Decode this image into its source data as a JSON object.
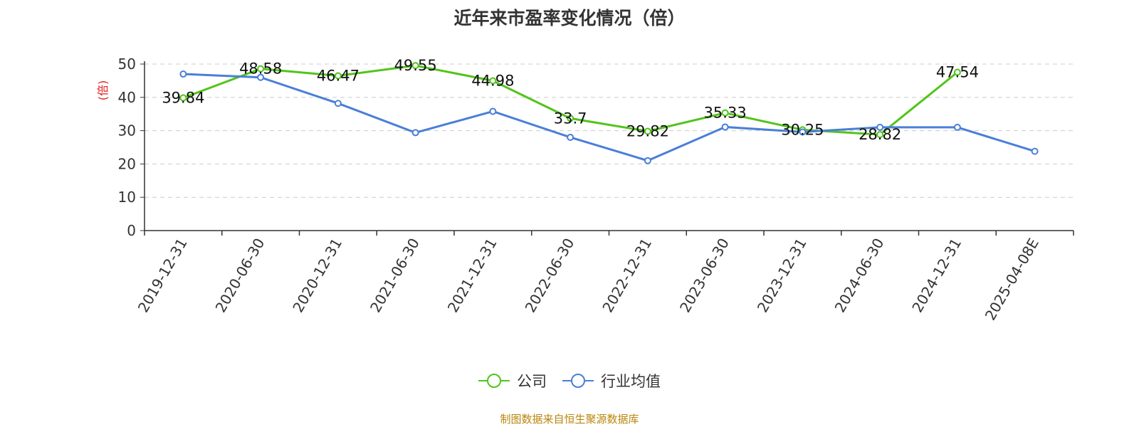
{
  "chart_data": {
    "type": "line",
    "title": "近年来市盈率变化情况（倍）",
    "ylabel": "(倍)",
    "ylim": [
      0,
      50
    ],
    "yticks": [
      0,
      10,
      20,
      30,
      40,
      50
    ],
    "categories": [
      "2019-12-31",
      "2020-06-30",
      "2020-12-31",
      "2021-06-30",
      "2021-12-31",
      "2022-06-30",
      "2022-12-31",
      "2023-06-30",
      "2023-12-31",
      "2024-06-30",
      "2024-12-31",
      "2025-04-08E"
    ],
    "grid": true,
    "legend_position": "bottom",
    "series": [
      {
        "name": "公司",
        "color": "#52c41a",
        "values": [
          39.84,
          48.58,
          46.47,
          49.55,
          44.98,
          33.7,
          29.82,
          35.33,
          30.25,
          28.82,
          47.54,
          null
        ],
        "show_labels": true
      },
      {
        "name": "行业均值",
        "color": "#4a7fd8",
        "values": [
          47.0,
          46.0,
          38.2,
          29.4,
          35.8,
          28.0,
          21.0,
          31.1,
          29.6,
          31.0,
          31.0,
          23.8
        ],
        "show_labels": false
      }
    ]
  },
  "source": "制图数据来自恒生聚源数据库"
}
